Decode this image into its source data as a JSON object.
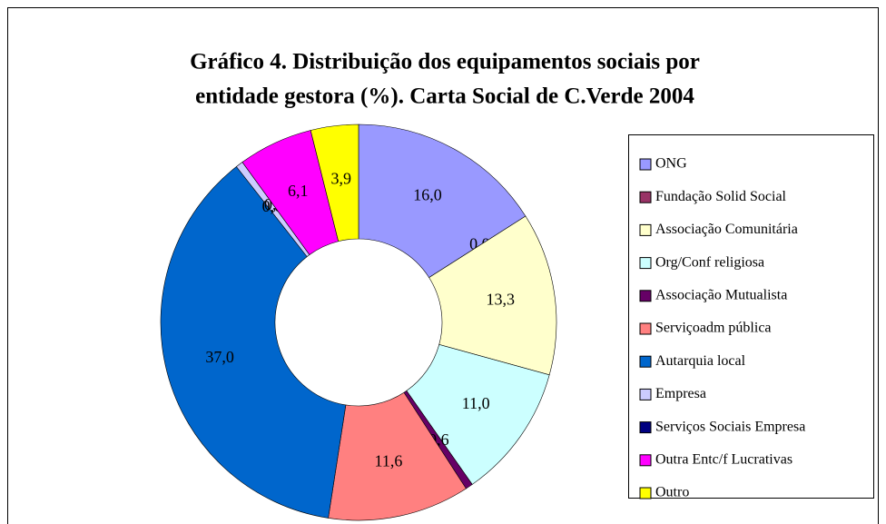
{
  "chart_data": {
    "type": "donut",
    "title": "Gráfico 4. Distribuição dos equipamentos sociais por",
    "subtitle": "entidade gestora (%). Carta Social de C.Verde 2004",
    "categories": [
      "ONG",
      "Fundação Solid Social",
      "Associação Comunitária",
      "Org/Conf religiosa",
      "Associação Mutualista",
      "Serviçoadm pública",
      "Autarquia local",
      "Empresa",
      "Serviços Sociais Empresa",
      "Outra Entc/f Lucrativas",
      "Outro"
    ],
    "values": [
      16.0,
      0.0,
      13.3,
      11.0,
      0.6,
      11.6,
      37.0,
      0.6,
      0.0,
      6.1,
      3.9
    ],
    "value_labels": [
      "16,0",
      "0,0",
      "13,3",
      "11,0",
      "0,6",
      "11,6",
      "37,0",
      "0,6",
      "0,0",
      "6,1",
      "3,9"
    ],
    "colors": [
      "#9999ff",
      "#993366",
      "#ffffcc",
      "#ccffff",
      "#660066",
      "#ff8080",
      "#0066cc",
      "#ccccff",
      "#000080",
      "#ff00ff",
      "#ffff00"
    ],
    "legend": "right"
  }
}
